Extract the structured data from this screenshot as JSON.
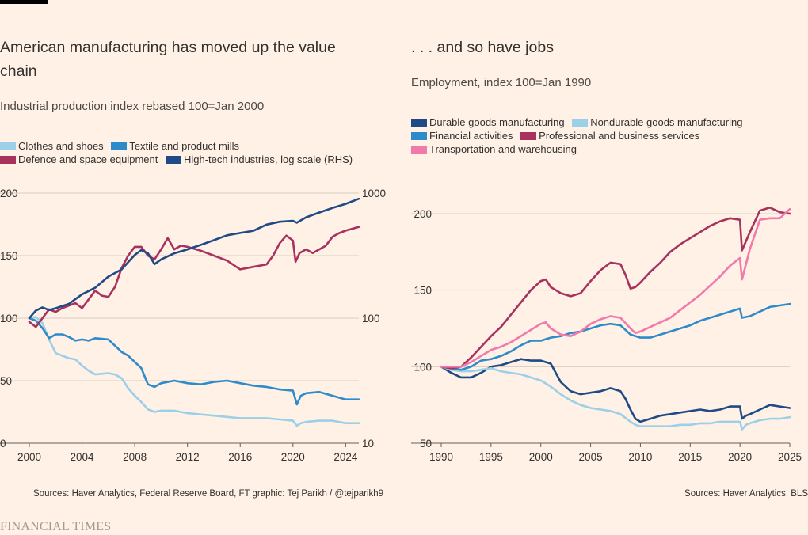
{
  "footer": {
    "brand": "FINANCIAL TIMES"
  },
  "left": {
    "title": "American manufacturing has moved up the value chain",
    "subtitle": "Industrial production index rebased 100=Jan 2000",
    "legend": [
      {
        "label": "Clothes and shoes",
        "color": "#9bd0e8"
      },
      {
        "label": "Textile and product mills",
        "color": "#2e8bc9"
      },
      {
        "label": "Defence and space equipment",
        "color": "#a8325e"
      },
      {
        "label": "High-tech industries, log scale (RHS)",
        "color": "#1f4a85"
      }
    ],
    "source": "Sources: Haver Analytics, Federal Reserve Board, FT graphic: Tej Parikh / @tejparikh9"
  },
  "right": {
    "title": ". . . and so have jobs",
    "subtitle": "Employment, index 100=Jan 1990",
    "legend": [
      {
        "label": "Durable goods manufacturing",
        "color": "#1f4a85"
      },
      {
        "label": "Nondurable goods manufacturing",
        "color": "#9bd0e8"
      },
      {
        "label": "Financial activities",
        "color": "#2e8bc9"
      },
      {
        "label": "Professional and business services",
        "color": "#a8325e"
      },
      {
        "label": "Transportation and warehousing",
        "color": "#f07aaa"
      }
    ],
    "source": "Sources: Haver Analytics, BLS"
  },
  "chart_data": [
    {
      "type": "line",
      "title": "American manufacturing has moved up the value chain",
      "subtitle": "Industrial production index rebased 100=Jan 2000",
      "xlim": [
        2000,
        2025
      ],
      "ylim": [
        0,
        200
      ],
      "y2lim": [
        10,
        1000
      ],
      "y2scale": "log",
      "x_ticks": [
        2000,
        2004,
        2008,
        2012,
        2016,
        2020,
        2024
      ],
      "y_ticks": [
        0,
        50,
        100,
        150,
        200
      ],
      "y2_ticks": [
        10,
        100,
        1000
      ],
      "grid": true,
      "legend_position": "top",
      "series": [
        {
          "name": "Clothes and shoes",
          "color": "#9bd0e8",
          "axis": "left",
          "x": [
            2000,
            2000.5,
            2001,
            2001.5,
            2002,
            2002.5,
            2003,
            2003.5,
            2004,
            2004.5,
            2005,
            2006,
            2006.5,
            2007,
            2007.5,
            2008,
            2008.5,
            2009,
            2009.5,
            2010,
            2011,
            2012,
            2014,
            2016,
            2018,
            2019,
            2020,
            2020.3,
            2020.6,
            2021,
            2022,
            2023,
            2024,
            2025
          ],
          "y": [
            100,
            101,
            96,
            83,
            72,
            70,
            68,
            67,
            62,
            58,
            55,
            56,
            55,
            52,
            44,
            38,
            33,
            27,
            25,
            26,
            26,
            24,
            22,
            20,
            20,
            19,
            18,
            14,
            16,
            17,
            18,
            18,
            16,
            16
          ]
        },
        {
          "name": "Textile and product mills",
          "color": "#2e8bc9",
          "axis": "left",
          "x": [
            2000,
            2000.5,
            2001,
            2001.5,
            2002,
            2002.5,
            2003,
            2003.5,
            2004,
            2004.5,
            2005,
            2006,
            2006.5,
            2007,
            2007.5,
            2008,
            2008.5,
            2009,
            2009.5,
            2010,
            2011,
            2012,
            2013,
            2014,
            2015,
            2016,
            2017,
            2018,
            2019,
            2020,
            2020.3,
            2020.6,
            2021,
            2022,
            2023,
            2024,
            2025
          ],
          "y": [
            100,
            98,
            92,
            84,
            87,
            87,
            85,
            82,
            83,
            82,
            84,
            83,
            78,
            73,
            70,
            65,
            60,
            47,
            45,
            48,
            50,
            48,
            47,
            49,
            50,
            48,
            46,
            45,
            43,
            42,
            31,
            38,
            40,
            41,
            38,
            35,
            35
          ]
        },
        {
          "name": "Defence and space equipment",
          "color": "#a8325e",
          "axis": "left",
          "x": [
            2000,
            2000.5,
            2001,
            2001.5,
            2002,
            2002.5,
            2003,
            2003.5,
            2004,
            2004.5,
            2005,
            2005.5,
            2006,
            2006.5,
            2007,
            2007.5,
            2008,
            2008.5,
            2009,
            2009.5,
            2010,
            2010.5,
            2011,
            2011.5,
            2012,
            2013,
            2014,
            2015,
            2016,
            2017,
            2018,
            2018.5,
            2019,
            2019.5,
            2020,
            2020.2,
            2020.5,
            2021,
            2021.5,
            2022,
            2022.5,
            2023,
            2023.5,
            2024,
            2025
          ],
          "y": [
            97,
            93,
            100,
            107,
            105,
            108,
            110,
            112,
            108,
            115,
            122,
            118,
            117,
            125,
            140,
            150,
            157,
            157,
            150,
            147,
            155,
            164,
            155,
            158,
            157,
            154,
            150,
            146,
            139,
            141,
            143,
            150,
            160,
            166,
            162,
            145,
            152,
            155,
            152,
            155,
            158,
            165,
            168,
            170,
            173
          ]
        },
        {
          "name": "High-tech industries, log scale (RHS)",
          "color": "#1f4a85",
          "axis": "right",
          "x": [
            2000,
            2000.5,
            2001,
            2001.5,
            2002,
            2003,
            2004,
            2005,
            2006,
            2007,
            2007.5,
            2008,
            2008.5,
            2009,
            2009.5,
            2010,
            2011,
            2012,
            2013,
            2014,
            2015,
            2016,
            2017,
            2018,
            2019,
            2020,
            2020.3,
            2021,
            2022,
            2023,
            2024,
            2025
          ],
          "y": [
            100,
            115,
            122,
            116,
            120,
            130,
            155,
            175,
            215,
            245,
            280,
            320,
            350,
            330,
            270,
            295,
            330,
            355,
            385,
            420,
            460,
            480,
            500,
            560,
            590,
            600,
            580,
            640,
            700,
            760,
            820,
            900
          ]
        }
      ]
    },
    {
      "type": "line",
      "title": ". . . and so have jobs",
      "subtitle": "Employment, index 100=Jan 1990",
      "xlim": [
        1990,
        2025
      ],
      "ylim": [
        50,
        200
      ],
      "x_ticks": [
        1990,
        1995,
        2000,
        2005,
        2010,
        2015,
        2020,
        2025
      ],
      "y_ticks": [
        50,
        100,
        150,
        200
      ],
      "grid": true,
      "legend_position": "top",
      "series": [
        {
          "name": "Durable goods manufacturing",
          "color": "#1f4a85",
          "x": [
            1990,
            1991,
            1992,
            1993,
            1994,
            1995,
            1996,
            1997,
            1998,
            1999,
            2000,
            2001,
            2002,
            2003,
            2004,
            2005,
            2006,
            2007,
            2008,
            2008.5,
            2009,
            2009.5,
            2010,
            2011,
            2012,
            2013,
            2014,
            2015,
            2016,
            2017,
            2018,
            2019,
            2020,
            2020.2,
            2020.6,
            2021,
            2022,
            2023,
            2024,
            2025
          ],
          "y": [
            100,
            96,
            93,
            93,
            96,
            100,
            101,
            103,
            105,
            104,
            104,
            102,
            90,
            84,
            82,
            83,
            84,
            86,
            84,
            79,
            72,
            66,
            64,
            66,
            68,
            69,
            70,
            71,
            72,
            71,
            72,
            74,
            74,
            66,
            68,
            69,
            72,
            75,
            74,
            73
          ]
        },
        {
          "name": "Nondurable goods manufacturing",
          "color": "#9bd0e8",
          "x": [
            1990,
            1991,
            1992,
            1993,
            1994,
            1995,
            1996,
            1997,
            1998,
            1999,
            2000,
            2001,
            2002,
            2003,
            2004,
            2005,
            2006,
            2007,
            2008,
            2009,
            2009.5,
            2010,
            2011,
            2012,
            2013,
            2014,
            2015,
            2016,
            2017,
            2018,
            2019,
            2020,
            2020.2,
            2020.6,
            2021,
            2022,
            2023,
            2024,
            2025
          ],
          "y": [
            100,
            98,
            97,
            97,
            98,
            99,
            97,
            96,
            95,
            93,
            91,
            87,
            82,
            78,
            75,
            73,
            72,
            71,
            69,
            64,
            62,
            61,
            61,
            61,
            61,
            62,
            62,
            63,
            63,
            64,
            64,
            64,
            59,
            62,
            63,
            65,
            66,
            66,
            67
          ]
        },
        {
          "name": "Financial activities",
          "color": "#2e8bc9",
          "x": [
            1990,
            1991,
            1992,
            1993,
            1994,
            1995,
            1996,
            1997,
            1998,
            1999,
            2000,
            2001,
            2002,
            2003,
            2004,
            2005,
            2006,
            2007,
            2008,
            2009,
            2010,
            2011,
            2012,
            2013,
            2014,
            2015,
            2016,
            2017,
            2018,
            2019,
            2020,
            2020.2,
            2021,
            2022,
            2023,
            2024,
            2025
          ],
          "y": [
            100,
            99,
            98,
            100,
            104,
            105,
            107,
            110,
            114,
            117,
            117,
            119,
            120,
            122,
            123,
            125,
            127,
            128,
            127,
            121,
            119,
            119,
            121,
            123,
            125,
            127,
            130,
            132,
            134,
            136,
            138,
            132,
            133,
            136,
            139,
            140,
            141
          ]
        },
        {
          "name": "Professional and business services",
          "color": "#a8325e",
          "x": [
            1990,
            1991,
            1992,
            1993,
            1994,
            1995,
            1996,
            1997,
            1998,
            1999,
            2000,
            2000.5,
            2001,
            2002,
            2003,
            2004,
            2005,
            2006,
            2007,
            2008,
            2008.5,
            2009,
            2009.5,
            2010,
            2011,
            2012,
            2013,
            2014,
            2015,
            2016,
            2017,
            2018,
            2019,
            2020,
            2020.2,
            2021,
            2022,
            2023,
            2024,
            2025
          ],
          "y": [
            100,
            99,
            100,
            106,
            113,
            120,
            126,
            134,
            142,
            150,
            156,
            157,
            152,
            148,
            146,
            148,
            156,
            163,
            168,
            167,
            160,
            151,
            152,
            155,
            162,
            168,
            175,
            180,
            184,
            188,
            192,
            195,
            197,
            196,
            176,
            188,
            202,
            204,
            201,
            200
          ]
        },
        {
          "name": "Transportation and warehousing",
          "color": "#f07aaa",
          "x": [
            1990,
            1991,
            1992,
            1993,
            1994,
            1995,
            1996,
            1997,
            1998,
            1999,
            2000,
            2000.5,
            2001,
            2002,
            2003,
            2004,
            2005,
            2006,
            2007,
            2008,
            2009,
            2009.5,
            2010,
            2011,
            2012,
            2013,
            2014,
            2015,
            2016,
            2017,
            2018,
            2019,
            2020,
            2020.2,
            2021,
            2022,
            2023,
            2024,
            2025
          ],
          "y": [
            100,
            100,
            100,
            103,
            107,
            111,
            113,
            116,
            120,
            124,
            128,
            129,
            125,
            121,
            120,
            123,
            128,
            131,
            133,
            132,
            125,
            122,
            123,
            126,
            129,
            132,
            137,
            142,
            147,
            153,
            159,
            166,
            171,
            157,
            177,
            196,
            197,
            197,
            203
          ]
        }
      ]
    }
  ]
}
